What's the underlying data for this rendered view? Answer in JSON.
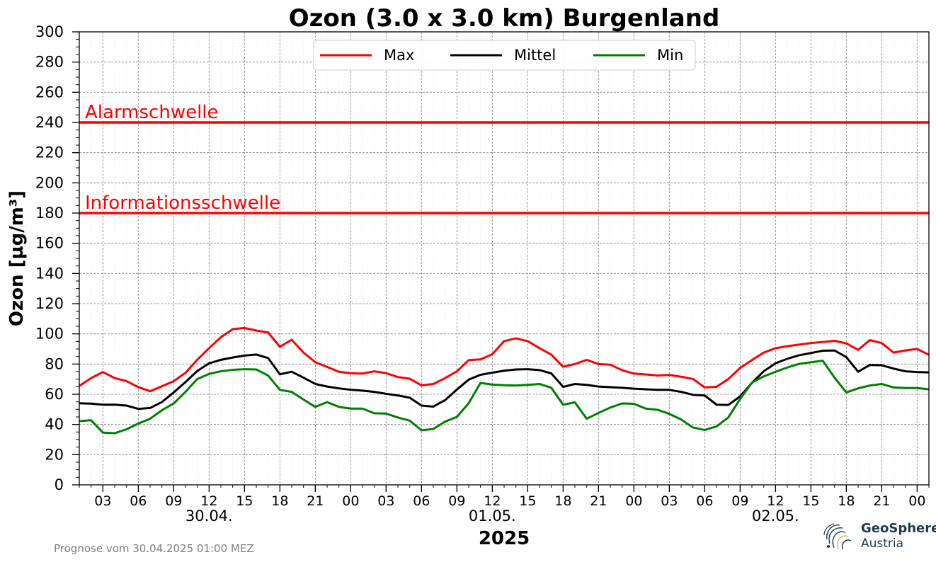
{
  "chart_data": {
    "type": "line",
    "title": "Ozon (3.0 x 3.0 km) Burgenland",
    "ylabel": "Ozon [µg/m³]",
    "xlabel": "2025",
    "ylim": [
      0,
      300
    ],
    "yticks": [
      0,
      20,
      40,
      60,
      80,
      100,
      120,
      140,
      160,
      180,
      200,
      220,
      240,
      260,
      280,
      300
    ],
    "x_hours": [
      1,
      2,
      3,
      4,
      5,
      6,
      7,
      8,
      9,
      10,
      11,
      12,
      13,
      14,
      15,
      16,
      17,
      18,
      19,
      20,
      21,
      22,
      23,
      24,
      25,
      26,
      27,
      28,
      29,
      30,
      31,
      32,
      33,
      34,
      35,
      36,
      37,
      38,
      39,
      40,
      41,
      42,
      43,
      44,
      45,
      46,
      47,
      48,
      49,
      50,
      51,
      52,
      53,
      54,
      55,
      56,
      57,
      58,
      59,
      60,
      61,
      62,
      63,
      64,
      65,
      66,
      67,
      68,
      69,
      70,
      71,
      72,
      73
    ],
    "xlim": [
      1,
      73
    ],
    "xtick_hours": [
      3,
      6,
      9,
      12,
      15,
      18,
      21,
      24,
      27,
      30,
      33,
      36,
      39,
      42,
      45,
      48,
      51,
      54,
      57,
      60,
      63,
      66,
      69,
      72
    ],
    "xtick_labels": [
      "03",
      "06",
      "09",
      "12",
      "15",
      "18",
      "21",
      "00",
      "03",
      "06",
      "09",
      "12",
      "15",
      "18",
      "21",
      "00",
      "03",
      "06",
      "09",
      "12",
      "15",
      "18",
      "21",
      "00"
    ],
    "date_labels": [
      {
        "hour": 12,
        "label": "30.04."
      },
      {
        "hour": 36,
        "label": "01.05."
      },
      {
        "hour": 60,
        "label": "02.05."
      }
    ],
    "series": [
      {
        "name": "Max",
        "color": "#ff0000",
        "values": [
          65.5,
          70.7,
          74.7,
          70.7,
          68.7,
          64.7,
          62,
          65.3,
          68.7,
          74.2,
          82.9,
          90.5,
          97.8,
          103.1,
          103.9,
          102.2,
          100.9,
          91.4,
          96.1,
          87.6,
          81.2,
          78.1,
          74.9,
          73.9,
          73.7,
          75.2,
          74,
          71.4,
          70.3,
          65.9,
          66.8,
          70.7,
          75.2,
          82.6,
          83.1,
          86.5,
          95.2,
          97,
          95.2,
          90.5,
          86.2,
          78.2,
          80,
          82.8,
          80,
          79.6,
          75.9,
          73.7,
          73.1,
          72.4,
          72.8,
          71.6,
          70.1,
          64.5,
          64.9,
          70.1,
          77.4,
          82.6,
          87.6,
          90.5,
          91.8,
          92.9,
          93.9,
          94.6,
          95.4,
          93.7,
          89.4,
          95.9,
          93.9,
          87.6,
          89,
          90,
          86.1
        ]
      },
      {
        "name": "Mittel",
        "color": "#000000",
        "values": [
          54,
          53.8,
          53.1,
          53.1,
          52.5,
          50.3,
          50.9,
          54.8,
          61.2,
          68.1,
          75.4,
          80.5,
          82.8,
          84.3,
          85.6,
          86.3,
          84,
          73.2,
          74.9,
          71,
          66.8,
          65.1,
          63.9,
          63,
          62.4,
          61.6,
          60.3,
          59.2,
          57.7,
          52.5,
          51.8,
          56.1,
          63.1,
          69.7,
          72.9,
          74.3,
          75.6,
          76.4,
          76.6,
          76,
          73.8,
          64.9,
          66.8,
          66.2,
          65.1,
          64.7,
          64.3,
          63.7,
          63.3,
          62.9,
          62.9,
          61.6,
          59.6,
          59.2,
          53.1,
          52.9,
          58.6,
          67.5,
          75.2,
          80.5,
          83.5,
          85.8,
          87.3,
          88.8,
          89,
          84.6,
          74.9,
          79.4,
          79.2,
          77,
          75.2,
          74.7,
          74.5
        ]
      },
      {
        "name": "Min",
        "color": "#008000",
        "values": [
          42.2,
          42.8,
          34.6,
          34.2,
          36.8,
          40.6,
          43.8,
          49.4,
          53.9,
          61.6,
          70.1,
          73.5,
          75.2,
          76.2,
          76.6,
          76.4,
          72.4,
          62.9,
          61.6,
          56.5,
          51.6,
          54.8,
          51.6,
          50.5,
          50.5,
          47.4,
          47.2,
          44.6,
          42.5,
          36.1,
          37,
          41.9,
          45,
          54.1,
          67.5,
          66.4,
          66,
          65.8,
          66.2,
          66.8,
          64.3,
          53.1,
          54.6,
          43.8,
          47.6,
          51.2,
          53.9,
          53.7,
          50.5,
          49.7,
          47,
          43.3,
          38,
          36.3,
          38.7,
          44.6,
          56.9,
          67.7,
          71.8,
          74.9,
          77.7,
          80.1,
          81.2,
          82.2,
          71,
          61.2,
          63.9,
          65.8,
          66.8,
          64.5,
          64.1,
          64.1,
          63.3
        ]
      }
    ],
    "thresholds": [
      {
        "label": "Alarmschwelle",
        "value": 240,
        "color": "#ff0000"
      },
      {
        "label": "Informationsschwelle",
        "value": 180,
        "color": "#ff0000"
      }
    ],
    "legend": {
      "position": "top-center",
      "entries": [
        "Max",
        "Mittel",
        "Min"
      ]
    },
    "grid": true
  },
  "footnote": "Prognose vom 30.04.2025 01:00 MEZ",
  "brand": {
    "name": "GeoSphere",
    "sub": "Austria"
  }
}
